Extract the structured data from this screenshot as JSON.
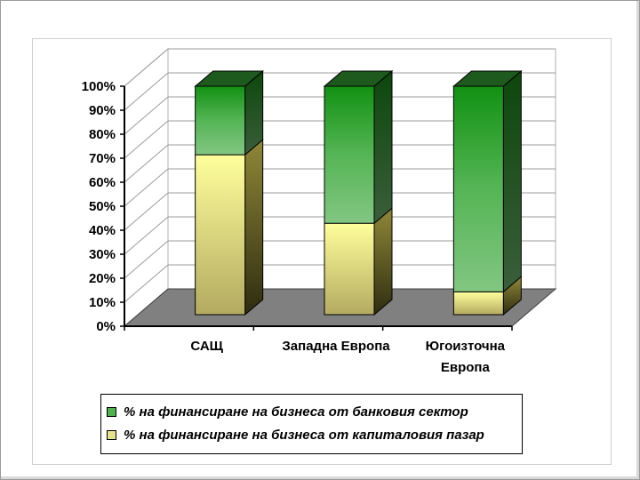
{
  "chart_data": {
    "type": "bar",
    "stacked": true,
    "percent_stacked": true,
    "three_d": true,
    "categories": [
      "САЩ",
      "Западна Европа",
      "Югоизточна Европа"
    ],
    "category_display": [
      [
        "САЩ"
      ],
      [
        "Западна Европа"
      ],
      [
        "Югоизточна",
        "Европа"
      ]
    ],
    "series": [
      {
        "name": "% на финансиране на бизнеса от капиталовия пазар",
        "values": [
          70,
          40,
          10
        ],
        "color": "#e6e38c"
      },
      {
        "name": "% на финансиране на бизнеса от банковия сектор",
        "values": [
          30,
          60,
          90
        ],
        "color": "#4fb24f"
      }
    ],
    "y_ticks": [
      "0%",
      "10%",
      "20%",
      "30%",
      "40%",
      "50%",
      "60%",
      "70%",
      "80%",
      "90%",
      "100%"
    ],
    "ylim": [
      0,
      100
    ],
    "grid": true,
    "legend_position": "bottom",
    "legend_order": [
      1,
      0
    ],
    "floor_color": "#808080"
  }
}
